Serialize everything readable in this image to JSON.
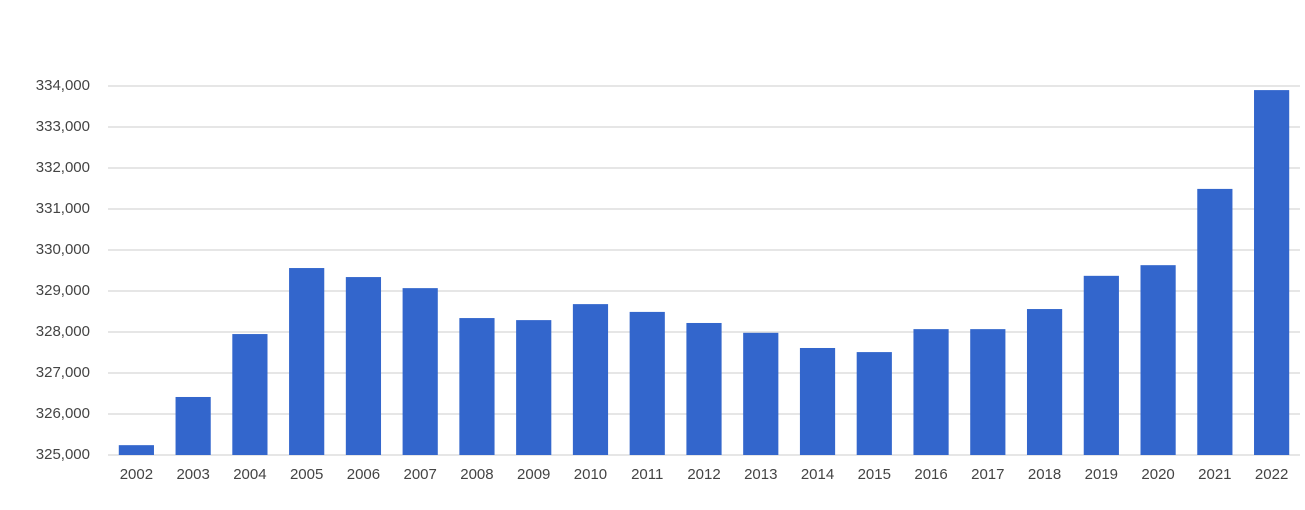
{
  "chart_data": {
    "type": "bar",
    "categories": [
      "2002",
      "2003",
      "2004",
      "2005",
      "2006",
      "2007",
      "2008",
      "2009",
      "2010",
      "2011",
      "2012",
      "2013",
      "2014",
      "2015",
      "2016",
      "2017",
      "2018",
      "2019",
      "2020",
      "2021",
      "2022"
    ],
    "values": [
      325240,
      326415,
      327950,
      329560,
      329340,
      329070,
      328340,
      328290,
      328680,
      328490,
      328220,
      327980,
      327610,
      327510,
      328070,
      328070,
      328560,
      329370,
      329630,
      331490,
      333900
    ],
    "color": "#3366cc",
    "ylim": [
      325000,
      334000
    ],
    "yticks": [
      {
        "value": 325000,
        "label": "325,000"
      },
      {
        "value": 326000,
        "label": "326,000"
      },
      {
        "value": 327000,
        "label": "327,000"
      },
      {
        "value": 328000,
        "label": "328,000"
      },
      {
        "value": 329000,
        "label": "329,000"
      },
      {
        "value": 330000,
        "label": "330,000"
      },
      {
        "value": 331000,
        "label": "331,000"
      },
      {
        "value": 332000,
        "label": "332,000"
      },
      {
        "value": 333000,
        "label": "333,000"
      },
      {
        "value": 334000,
        "label": "334,000"
      }
    ],
    "grid": true
  }
}
